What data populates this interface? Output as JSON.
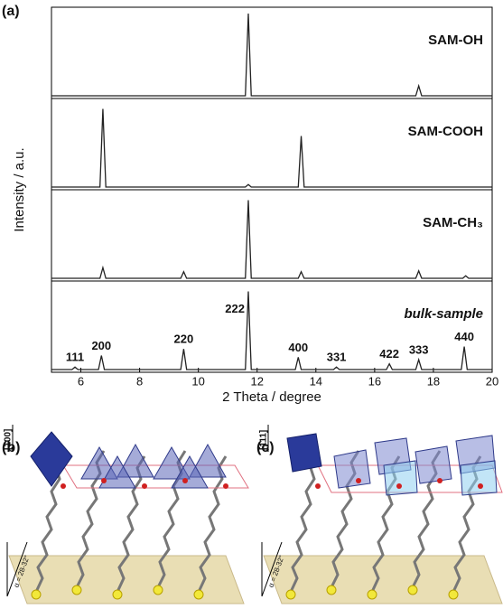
{
  "chart_data": {
    "type": "line",
    "x_label": "2 Theta / degree",
    "y_label": "Intensity / a.u.",
    "xlim": [
      5,
      20
    ],
    "xticks": [
      6,
      8,
      10,
      12,
      14,
      16,
      18,
      20
    ],
    "ylim": [
      0,
      100
    ],
    "series": [
      {
        "name": "SAM-OH",
        "color": "#222222",
        "x": [
          5,
          11.6,
          11.7,
          11.8,
          17.4,
          17.5,
          17.6,
          20
        ],
        "values": [
          0,
          0,
          100,
          0,
          0,
          12,
          0,
          0
        ]
      },
      {
        "name": "SAM-COOH",
        "color": "#222222",
        "x": [
          5,
          6.65,
          6.75,
          6.85,
          11.6,
          11.7,
          11.8,
          13.4,
          13.5,
          13.6,
          20
        ],
        "values": [
          0,
          0,
          95,
          0,
          0,
          3,
          0,
          0,
          62,
          0,
          0
        ]
      },
      {
        "name": "SAM-CH₃",
        "color": "#222222",
        "x": [
          5,
          6.65,
          6.75,
          6.85,
          9.4,
          9.5,
          9.6,
          11.6,
          11.7,
          11.8,
          13.4,
          13.5,
          13.6,
          17.4,
          17.5,
          17.6,
          19,
          19.1,
          19.2,
          20
        ],
        "values": [
          0,
          0,
          13,
          0,
          0,
          8,
          0,
          0,
          95,
          0,
          0,
          8,
          0,
          0,
          9,
          0,
          0,
          3,
          0,
          0
        ]
      },
      {
        "name": "bulk-sample",
        "color": "#222222",
        "x": [
          5,
          5.7,
          5.8,
          5.9,
          6.6,
          6.7,
          6.8,
          9.4,
          9.5,
          9.6,
          11.6,
          11.7,
          11.8,
          13.3,
          13.4,
          13.5,
          14.6,
          14.7,
          14.8,
          16.4,
          16.5,
          16.6,
          17.4,
          17.5,
          17.6,
          18.95,
          19.05,
          19.15,
          20
        ],
        "values": [
          0,
          0,
          3,
          0,
          0,
          17,
          0,
          0,
          25,
          0,
          0,
          95,
          0,
          0,
          15,
          0,
          0,
          3,
          0,
          0,
          7,
          0,
          0,
          12,
          0,
          0,
          28,
          0,
          0
        ]
      }
    ],
    "annotations": [
      {
        "text": "111",
        "x": 5.8
      },
      {
        "text": "200",
        "x": 6.7
      },
      {
        "text": "220",
        "x": 9.5
      },
      {
        "text": "222",
        "x": 11.7
      },
      {
        "text": "400",
        "x": 13.4
      },
      {
        "text": "331",
        "x": 14.7
      },
      {
        "text": "422",
        "x": 16.5
      },
      {
        "text": "333",
        "x": 17.5
      },
      {
        "text": "440",
        "x": 19.05
      }
    ]
  },
  "panel_labels": [
    "(a)",
    "(b)",
    "(c)"
  ],
  "illustrations": [
    {
      "direction": "[100]",
      "angle": "α = 28-32°"
    },
    {
      "direction": "[111]",
      "angle": "α = 28-32°"
    }
  ]
}
